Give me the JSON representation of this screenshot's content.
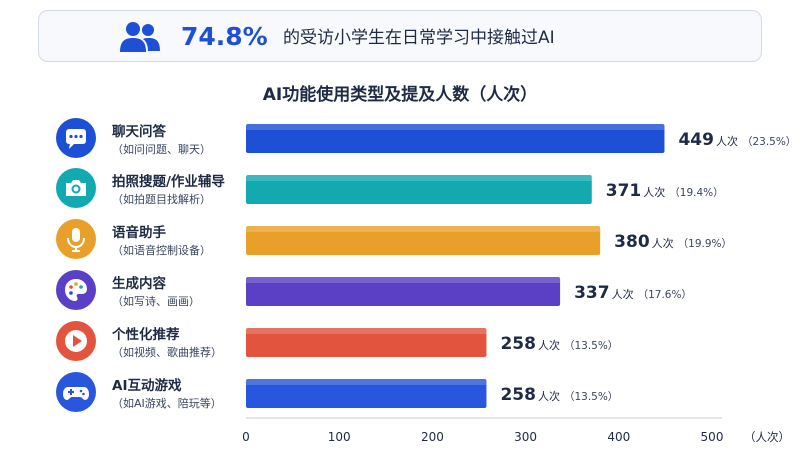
{
  "banner": {
    "percent": "74.8%",
    "text": "的受访小学生在日常学习中接触过AI",
    "icon": "users-icon"
  },
  "rows": [
    {
      "label": "聊天问答",
      "sub": "（如问问题、聊天）",
      "icon": "chat-icon",
      "color": "#1e50d6",
      "value_text": "449",
      "unit": "人次",
      "pct": "（23.5%）"
    },
    {
      "label": "拍照搜题/作业辅导",
      "sub": "（如拍题目找解析）",
      "icon": "camera-icon",
      "color": "#12a9b1",
      "value_text": "371",
      "unit": "人次",
      "pct": "（19.4%）"
    },
    {
      "label": "语音助手",
      "sub": "（如语音控制设备）",
      "icon": "microphone-icon",
      "color": "#e9a02a",
      "value_text": "380",
      "unit": "人次",
      "pct": "（19.9%）"
    },
    {
      "label": "生成内容",
      "sub": "（如写诗、画画）",
      "icon": "palette-icon",
      "color": "#5b3fc4",
      "value_text": "337",
      "unit": "人次",
      "pct": "（17.6%）"
    },
    {
      "label": "个性化推荐",
      "sub": "（如视频、歌曲推荐）",
      "icon": "play-icon",
      "color": "#e2543d",
      "value_text": "258",
      "unit": "人次",
      "pct": "（13.5%）"
    },
    {
      "label": "AI互动游戏",
      "sub": "（如AI游戏、陪玩等）",
      "icon": "gamepad-icon",
      "color": "#2856dc",
      "value_text": "258",
      "unit": "人次",
      "pct": "（13.5%）"
    }
  ],
  "chart_data": {
    "type": "bar",
    "orientation": "horizontal",
    "title": "AI功能使用类型及提及人数（人次）",
    "categories": [
      "聊天问答",
      "拍照搜题/作业辅导",
      "语音助手",
      "生成内容",
      "个性化推荐",
      "AI互动游戏"
    ],
    "values": [
      449,
      371,
      380,
      337,
      258,
      258
    ],
    "percentages": [
      23.5,
      19.4,
      19.9,
      17.6,
      13.5,
      13.5
    ],
    "xlabel": "（人次）",
    "ylabel": "",
    "xlim": [
      0,
      500
    ],
    "xticks": [
      0,
      100,
      200,
      300,
      400,
      500
    ],
    "grid": false,
    "legend": "none"
  }
}
